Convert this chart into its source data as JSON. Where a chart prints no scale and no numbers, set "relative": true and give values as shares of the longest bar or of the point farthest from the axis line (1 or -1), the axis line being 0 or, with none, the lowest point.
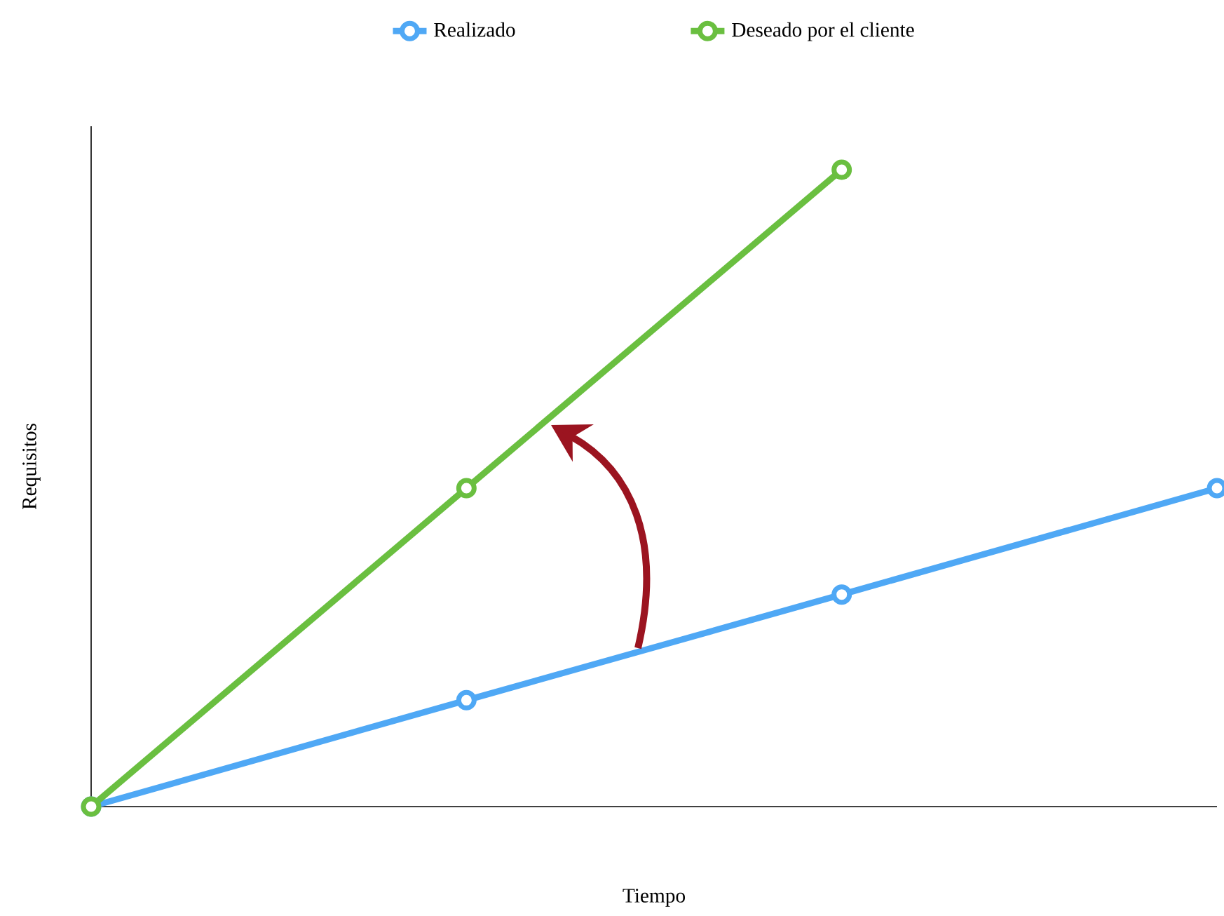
{
  "chart_data": {
    "type": "line",
    "xlabel": "Tiempo",
    "ylabel": "Requisitos",
    "relative": true,
    "categories": [
      null,
      null,
      null,
      null
    ],
    "marker": "circle",
    "legend": "top",
    "series": [
      {
        "name": "Realizado",
        "color": "#4fa8f5",
        "values": [
          0,
          0.167,
          0.333,
          0.5
        ]
      },
      {
        "name": "Deseado por el cliente",
        "color": "#6abf40",
        "values": [
          0,
          0.5,
          1,
          null
        ]
      }
    ]
  }
}
